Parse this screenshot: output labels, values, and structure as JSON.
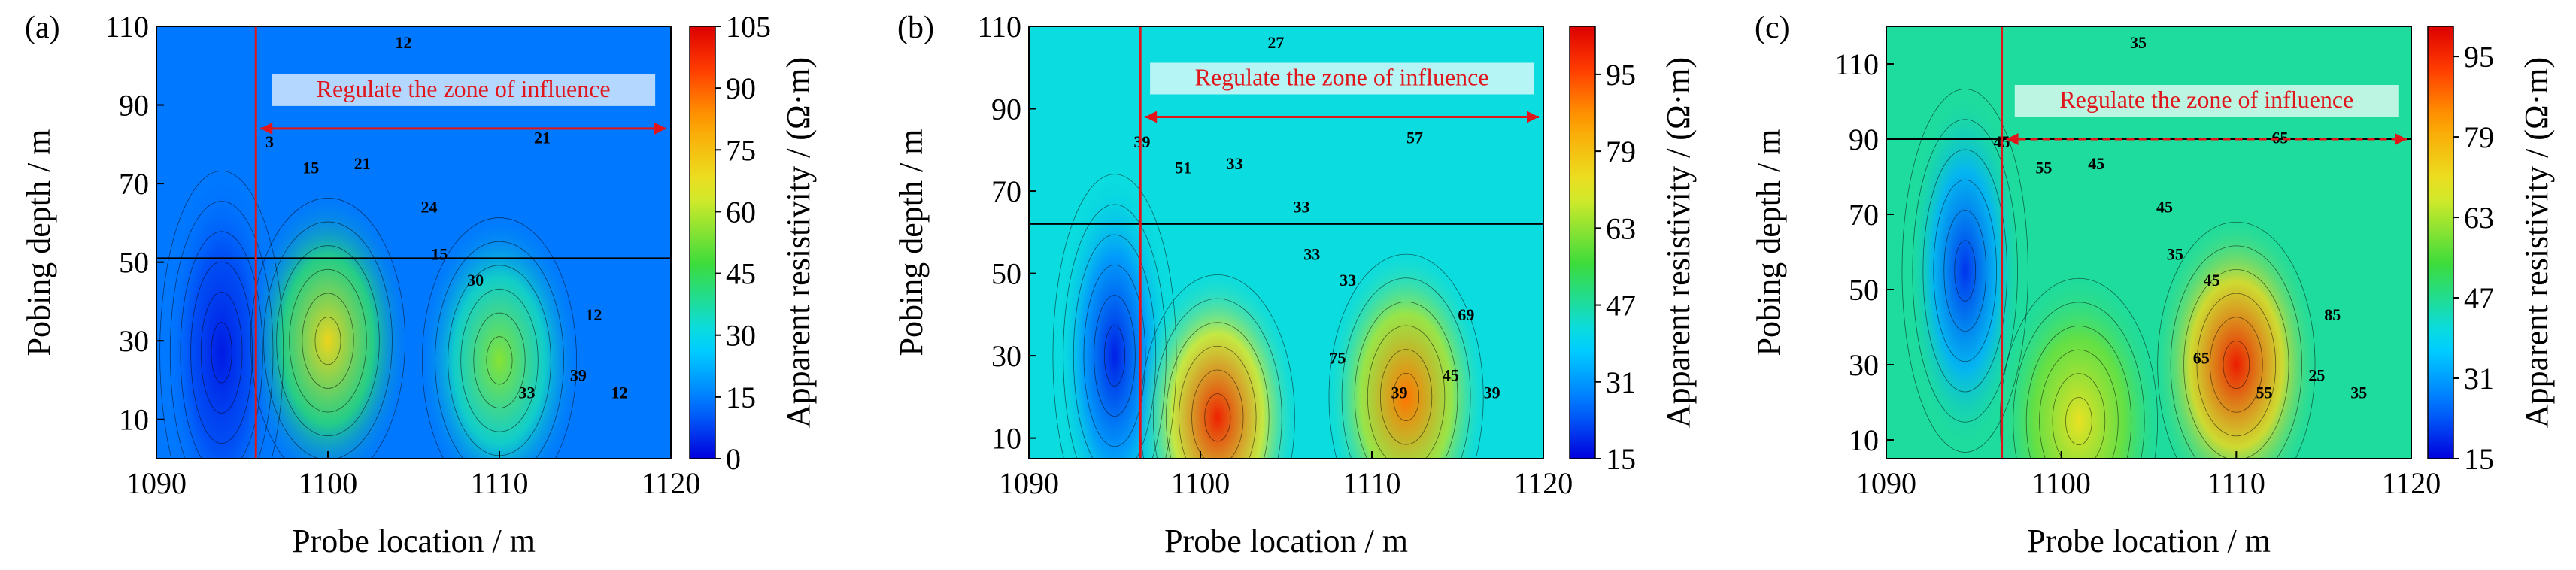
{
  "chart_data": [
    {
      "type": "heatmap",
      "panel_label": "(a)",
      "xlabel": "Probe location / m",
      "ylabel": "Pobing depth / m",
      "xlim": [
        1090,
        1120
      ],
      "ylim": [
        0,
        110
      ],
      "x_ticks": [
        1090,
        1100,
        1110,
        1120
      ],
      "y_ticks": [
        10,
        30,
        50,
        70,
        90,
        110
      ],
      "colorbar": {
        "label": "Apparent resistivity / (Ω·m)",
        "range": [
          0,
          105
        ],
        "ticks": [
          0,
          15,
          30,
          45,
          60,
          75,
          90,
          105
        ]
      },
      "annotation": "Regulate the zone of influence",
      "boundary_x": 1095.8,
      "horizontal_line_y": 51,
      "zone_arrow_y": 84,
      "contour_labels": [
        "3",
        "12",
        "15",
        "21",
        "24",
        "30",
        "33",
        "39",
        "12",
        "15",
        "21",
        "12"
      ],
      "features": [
        {
          "kind": "low",
          "x": 1093.8,
          "y": 27,
          "value": 3
        },
        {
          "kind": "high",
          "x": 1100,
          "y": 30,
          "value": 70
        },
        {
          "kind": "high",
          "x": 1110,
          "y": 25,
          "value": 55
        }
      ]
    },
    {
      "type": "heatmap",
      "panel_label": "(b)",
      "xlabel": "Probe location / m",
      "ylabel": "Pobing depth / m",
      "xlim": [
        1090,
        1120
      ],
      "ylim": [
        5,
        110
      ],
      "x_ticks": [
        1090,
        1100,
        1110,
        1120
      ],
      "y_ticks": [
        10,
        30,
        50,
        70,
        90,
        110
      ],
      "colorbar": {
        "label": "Apparent resistivity / (Ω·m)",
        "range": [
          15,
          105
        ],
        "ticks": [
          15,
          31,
          47,
          63,
          79,
          95
        ]
      },
      "annotation": "Regulate the zone of influence",
      "boundary_x": 1096.5,
      "horizontal_line_y": 62,
      "zone_arrow_y": 88,
      "contour_labels": [
        "39",
        "27",
        "33",
        "33",
        "33",
        "33",
        "39",
        "45",
        "39",
        "51",
        "57",
        "69",
        "75"
      ],
      "features": [
        {
          "kind": "low",
          "x": 1095,
          "y": 30,
          "value": 18
        },
        {
          "kind": "high",
          "x": 1101,
          "y": 15,
          "value": 100
        },
        {
          "kind": "high",
          "x": 1112,
          "y": 20,
          "value": 90
        }
      ]
    },
    {
      "type": "heatmap",
      "panel_label": "(c)",
      "xlabel": "Probe location / m",
      "ylabel": "Pobing depth / m",
      "xlim": [
        1090,
        1120
      ],
      "ylim": [
        5,
        120
      ],
      "x_ticks": [
        1090,
        1100,
        1110,
        1120
      ],
      "y_ticks": [
        10,
        30,
        50,
        70,
        90,
        110
      ],
      "colorbar": {
        "label": "Apparent resistivity / (Ω·m)",
        "range": [
          15,
          101
        ],
        "ticks": [
          15,
          31,
          47,
          63,
          79,
          95
        ]
      },
      "annotation": "Regulate the zone of influence",
      "boundary_x": 1096.6,
      "horizontal_line_y": 90,
      "zone_arrow_y": 90,
      "contour_labels": [
        "45",
        "35",
        "35",
        "45",
        "45",
        "45",
        "55",
        "25",
        "35",
        "55",
        "65",
        "85",
        "65"
      ],
      "features": [
        {
          "kind": "low",
          "x": 1094.5,
          "y": 55,
          "value": 20
        },
        {
          "kind": "high",
          "x": 1110,
          "y": 30,
          "value": 97
        },
        {
          "kind": "high",
          "x": 1101,
          "y": 15,
          "value": 70
        }
      ]
    }
  ]
}
